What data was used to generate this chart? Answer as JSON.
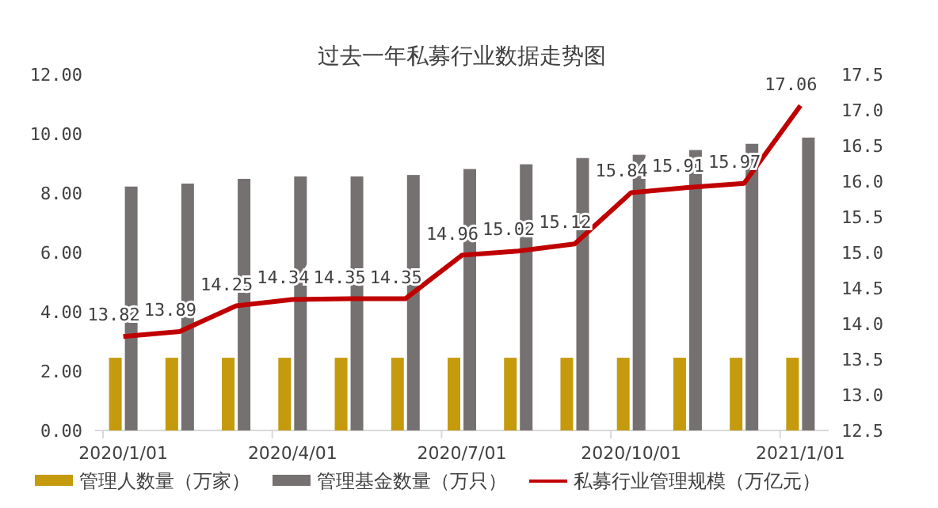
{
  "chart_data": {
    "type": "bar",
    "title": "过去一年私募行业数据走势图",
    "categories": [
      "2020/1/01",
      null,
      null,
      "2020/4/01",
      null,
      null,
      "2020/7/01",
      null,
      null,
      "2020/10/01",
      null,
      null,
      "2021/1/01"
    ],
    "series": [
      {
        "name": "管理人数量（万家）",
        "color": "#c59a0c",
        "values": [
          2.45,
          2.45,
          2.45,
          2.45,
          2.45,
          2.45,
          2.45,
          2.45,
          2.45,
          2.45,
          2.45,
          2.45,
          2.45
        ]
      },
      {
        "name": "管理基金数量（万只）",
        "color": "#767171",
        "values": [
          8.22,
          8.32,
          8.48,
          8.56,
          8.56,
          8.61,
          8.81,
          8.97,
          9.18,
          9.29,
          9.45,
          9.66,
          9.87
        ]
      },
      {
        "name": "私募行业管理规模（万亿元）",
        "type": "line",
        "axis": "y2",
        "color": "#c00000",
        "data_labels": true,
        "values": [
          13.82,
          13.89,
          14.25,
          14.34,
          14.35,
          14.35,
          14.96,
          15.02,
          15.12,
          15.84,
          15.91,
          15.97,
          17.06
        ]
      }
    ],
    "ylim": [
      0,
      12
    ],
    "yticks": [
      {
        "value": 0,
        "label": "0.00"
      },
      {
        "value": 2,
        "label": "2.00"
      },
      {
        "value": 4,
        "label": "4.00"
      },
      {
        "value": 6,
        "label": "6.00"
      },
      {
        "value": 8,
        "label": "8.00"
      },
      {
        "value": 10,
        "label": "10.00"
      },
      {
        "value": 12,
        "label": "12.00"
      }
    ],
    "y2lim": [
      12.5,
      17.5
    ],
    "y2ticks": [
      {
        "value": 12.5,
        "label": "12.5"
      },
      {
        "value": 13,
        "label": "13.0"
      },
      {
        "value": 13.5,
        "label": "13.5"
      },
      {
        "value": 14,
        "label": "14.0"
      },
      {
        "value": 14.5,
        "label": "14.5"
      },
      {
        "value": 15,
        "label": "15.0"
      },
      {
        "value": 15.5,
        "label": "15.5"
      },
      {
        "value": 16,
        "label": "16.0"
      },
      {
        "value": 16.5,
        "label": "16.5"
      },
      {
        "value": 17,
        "label": "17.0"
      },
      {
        "value": 17.5,
        "label": "17.5"
      }
    ],
    "legend": "bottom",
    "grid": false
  }
}
